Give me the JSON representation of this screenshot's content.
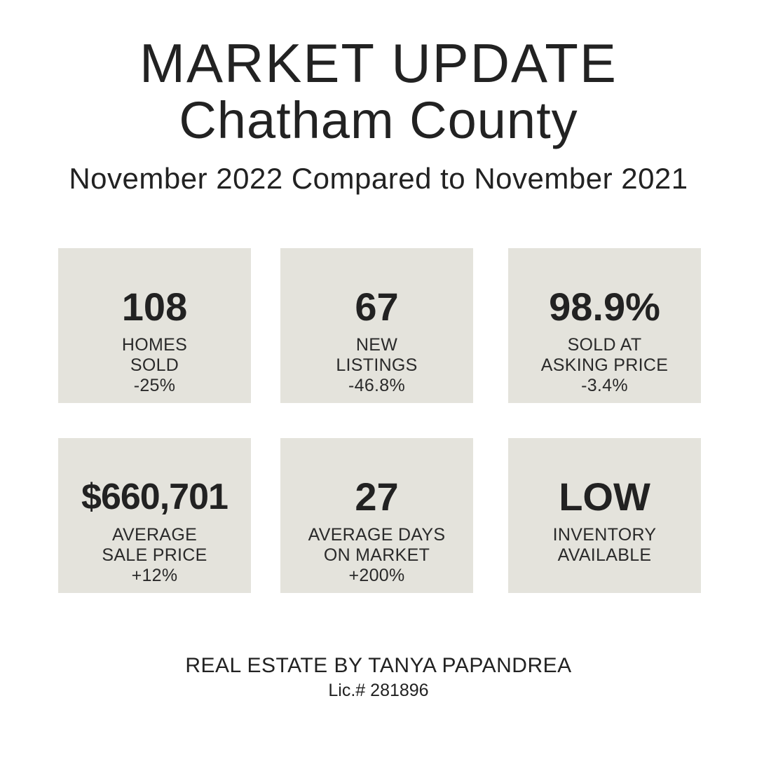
{
  "header": {
    "title": "MARKET UPDATE",
    "location": "Chatham County",
    "subtitle": "November 2022 Compared to November 2021"
  },
  "stats": [
    {
      "value": "108",
      "label_line_1": "HOMES",
      "label_line_2": "SOLD",
      "change": "-25%"
    },
    {
      "value": "67",
      "label_line_1": "NEW",
      "label_line_2": "LISTINGS",
      "change": "-46.8%"
    },
    {
      "value": "98.9%",
      "label_line_1": "SOLD AT",
      "label_line_2": "ASKING PRICE",
      "change": "-3.4%"
    },
    {
      "value": "$660,701",
      "label_line_1": "AVERAGE",
      "label_line_2": "SALE PRICE",
      "change": "+12%"
    },
    {
      "value": "27",
      "label_line_1": "AVERAGE DAYS",
      "label_line_2": "ON MARKET",
      "change": "+200%"
    },
    {
      "value": "LOW",
      "label_line_1": "INVENTORY",
      "label_line_2": "AVAILABLE",
      "change": ""
    }
  ],
  "footer": {
    "agent": "REAL ESTATE BY TANYA PAPANDREA",
    "license": "Lic.# 281896"
  },
  "colors": {
    "card_background": "#e4e3dc",
    "text": "#222222",
    "page_background": "#ffffff"
  }
}
